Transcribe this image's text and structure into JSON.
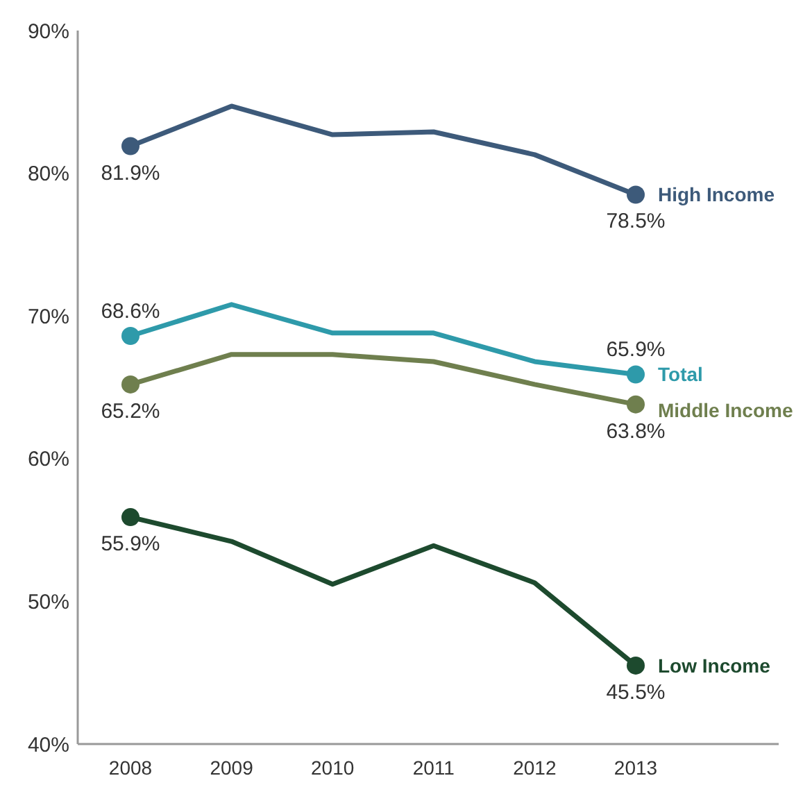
{
  "chart_data": {
    "type": "line",
    "categories": [
      "2008",
      "2009",
      "2010",
      "2011",
      "2012",
      "2013"
    ],
    "ylim": [
      40,
      90
    ],
    "yticks": [
      {
        "value": 40,
        "label": "40%"
      },
      {
        "value": 50,
        "label": "50%"
      },
      {
        "value": 60,
        "label": "60%"
      },
      {
        "value": 70,
        "label": "70%"
      },
      {
        "value": 80,
        "label": "80%"
      },
      {
        "value": 90,
        "label": "90%"
      }
    ],
    "grid": false,
    "legend": false,
    "line_style": "solid",
    "series": [
      {
        "name": "High Income",
        "color": "#3d5a7a",
        "values": [
          81.9,
          84.7,
          82.7,
          82.9,
          81.3,
          78.5
        ],
        "value_labels": [
          "81.9%",
          null,
          null,
          null,
          null,
          "78.5%"
        ]
      },
      {
        "name": "Total",
        "color": "#2e9aaa",
        "values": [
          68.6,
          70.8,
          68.8,
          68.8,
          66.8,
          65.9
        ],
        "value_labels": [
          "68.6%",
          null,
          null,
          null,
          null,
          "65.9%"
        ]
      },
      {
        "name": "Middle Income",
        "color": "#6f7f4e",
        "values": [
          65.2,
          67.3,
          67.3,
          66.8,
          65.2,
          63.8
        ],
        "value_labels": [
          "65.2%",
          null,
          null,
          null,
          null,
          "63.8%"
        ]
      },
      {
        "name": "Low Income",
        "color": "#1d4a2e",
        "values": [
          55.9,
          54.2,
          51.2,
          53.9,
          51.3,
          45.5
        ],
        "value_labels": [
          "55.9%",
          null,
          null,
          null,
          null,
          "45.5%"
        ]
      }
    ]
  }
}
